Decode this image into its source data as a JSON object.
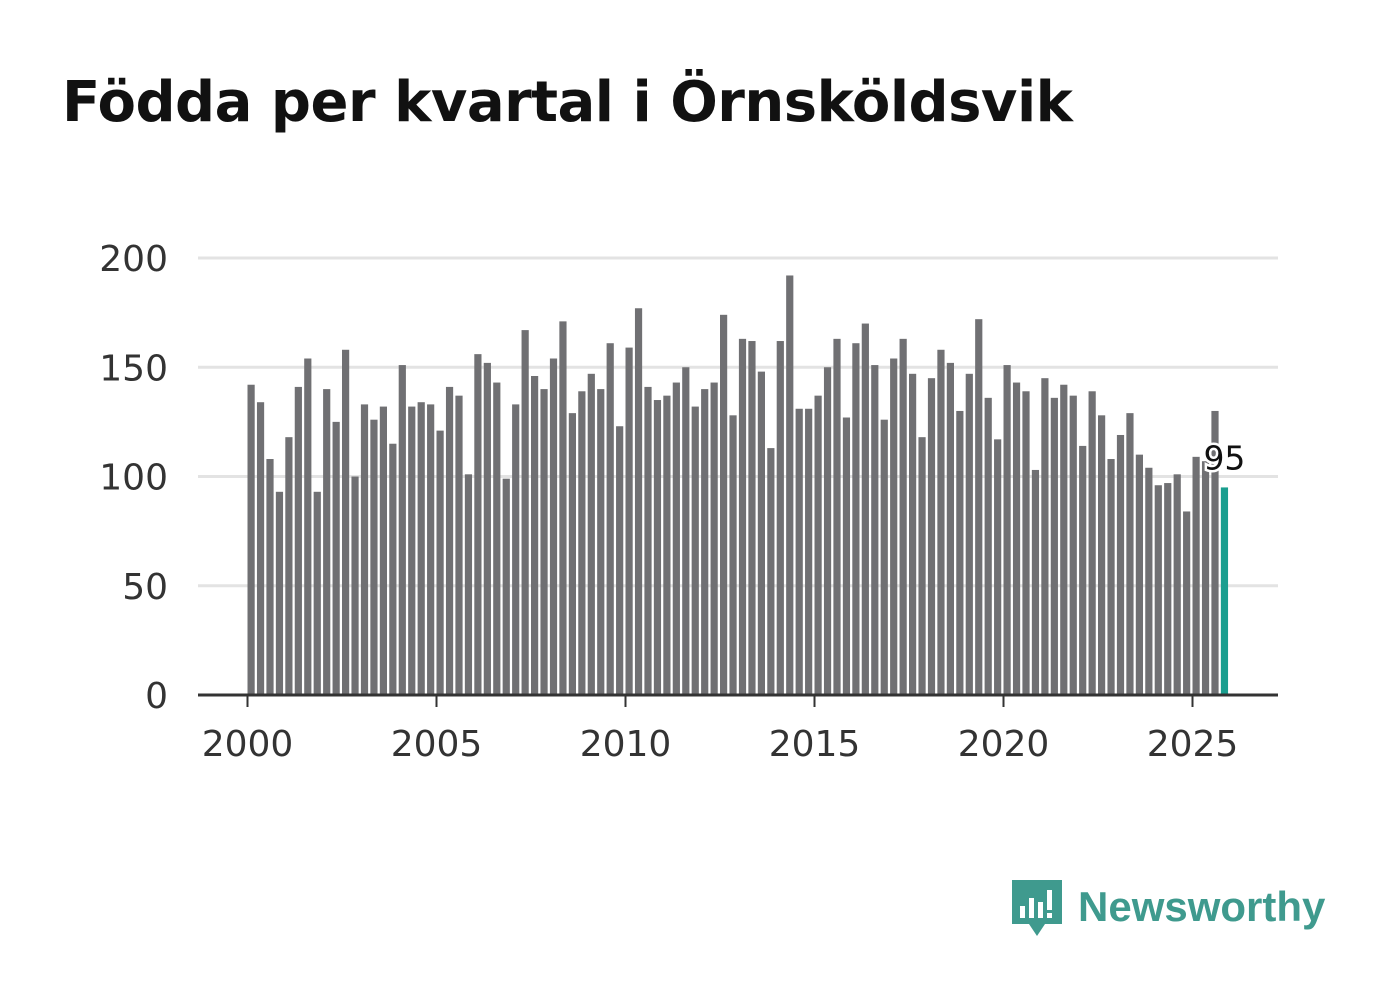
{
  "title": "Födda per kvartal i Örnsköldsvik",
  "logo": {
    "text": "Newsworthy",
    "icon": "newsworthy-logo-icon"
  },
  "colors": {
    "bar": "#707073",
    "highlight": "#1a9e8f",
    "grid": "#e3e3e3",
    "axis": "#333333",
    "brand": "#3f9a8e"
  },
  "chart_data": {
    "type": "bar",
    "title": "Födda per kvartal i Örnsköldsvik",
    "xlabel": "",
    "ylabel": "",
    "ylim": [
      0,
      200
    ],
    "yticks": [
      0,
      50,
      100,
      150,
      200
    ],
    "xticks": [
      2000,
      2005,
      2010,
      2015,
      2020,
      2025
    ],
    "x_start": 2000.0,
    "x_step": 0.25,
    "grid": true,
    "highlight_label": "95",
    "values": [
      142,
      134,
      108,
      93,
      118,
      141,
      154,
      93,
      140,
      125,
      158,
      100,
      133,
      126,
      132,
      115,
      151,
      132,
      134,
      133,
      121,
      141,
      137,
      101,
      156,
      152,
      143,
      99,
      133,
      167,
      146,
      140,
      154,
      171,
      129,
      139,
      147,
      140,
      161,
      123,
      159,
      177,
      141,
      135,
      137,
      143,
      150,
      132,
      140,
      143,
      174,
      128,
      163,
      162,
      148,
      113,
      162,
      192,
      131,
      131,
      137,
      150,
      163,
      127,
      161,
      170,
      151,
      126,
      154,
      163,
      147,
      118,
      145,
      158,
      152,
      130,
      147,
      172,
      136,
      117,
      151,
      143,
      139,
      103,
      145,
      136,
      142,
      137,
      114,
      139,
      128,
      108,
      119,
      129,
      110,
      104,
      96,
      97,
      101,
      84,
      109,
      107,
      130,
      95
    ]
  }
}
